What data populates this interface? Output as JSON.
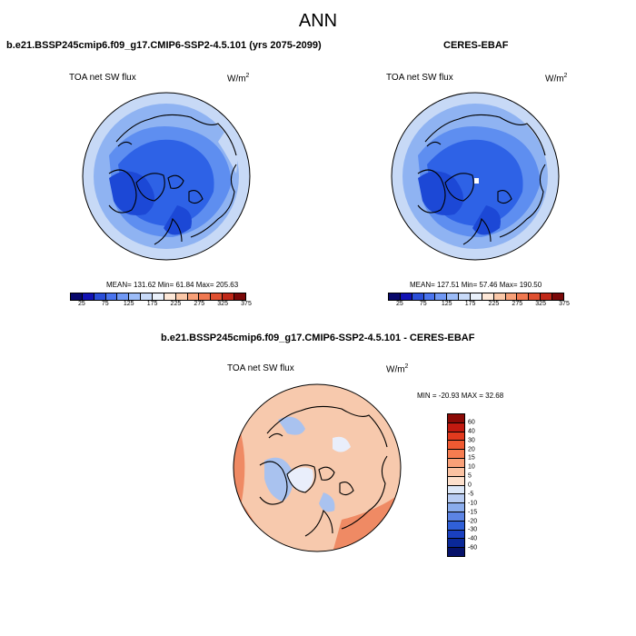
{
  "title": "ANN",
  "panels": [
    {
      "title": "b.e21.BSSP245cmip6.f09_g17.CMIP6-SSP2-4.5.101 (yrs 2075-2099)",
      "variable": "TOA net SW flux",
      "units": "W/m",
      "units_sup": "2",
      "stats": "MEAN= 131.62  Min=  61.84  Max= 205.63"
    },
    {
      "title": "CERES-EBAF",
      "variable": "TOA net SW flux",
      "units": "W/m",
      "units_sup": "2",
      "stats": "MEAN= 127.51  Min=  57.46  Max= 190.50"
    },
    {
      "title": "b.e21.BSSP245cmip6.f09_g17.CMIP6-SSP2-4.5.101 - CERES-EBAF",
      "variable": "TOA net SW flux",
      "units": "W/m",
      "units_sup": "2",
      "stats": "MIN = -20.93 MAX =  32.68"
    }
  ],
  "colorbar_main": {
    "colors": [
      "#08086b",
      "#1212b4",
      "#2a4ed8",
      "#4a74ee",
      "#7098f4",
      "#9cbcf8",
      "#c8daf8",
      "#eaf1fb",
      "#fde8d8",
      "#fbc8a8",
      "#f8a078",
      "#f07850",
      "#e05030",
      "#c02818",
      "#7a0808"
    ],
    "labels": [
      "25",
      "75",
      "125",
      "175",
      "225",
      "275",
      "325",
      "375"
    ]
  },
  "colorbar_diff": {
    "colors": [
      "#8b0a06",
      "#c21a10",
      "#e23a1e",
      "#f05a32",
      "#f67c50",
      "#f9a078",
      "#fbc2a2",
      "#fde0cc",
      "#dde8f8",
      "#b8ccf2",
      "#8aacec",
      "#5c84e4",
      "#3060d8",
      "#1a40c0",
      "#0a2898",
      "#06126a"
    ],
    "labels": [
      "60",
      "40",
      "30",
      "20",
      "15",
      "10",
      "5",
      "0",
      "-5",
      "-10",
      "-15",
      "-20",
      "-30",
      "-40",
      "-60"
    ]
  },
  "map_colors": {
    "ocean_main": "#8fb3f2",
    "rim_main": "#c7d9f6",
    "mid_main": "#5e8ef0",
    "core_main": "#2e62e6",
    "deep_main": "#1c48d6",
    "diff_base": "#f7c9ad",
    "diff_warm": "#ef8a64",
    "diff_hot": "#e3623b",
    "diff_cool": "#a9c2ef",
    "diff_neutral": "#e9eefb"
  }
}
